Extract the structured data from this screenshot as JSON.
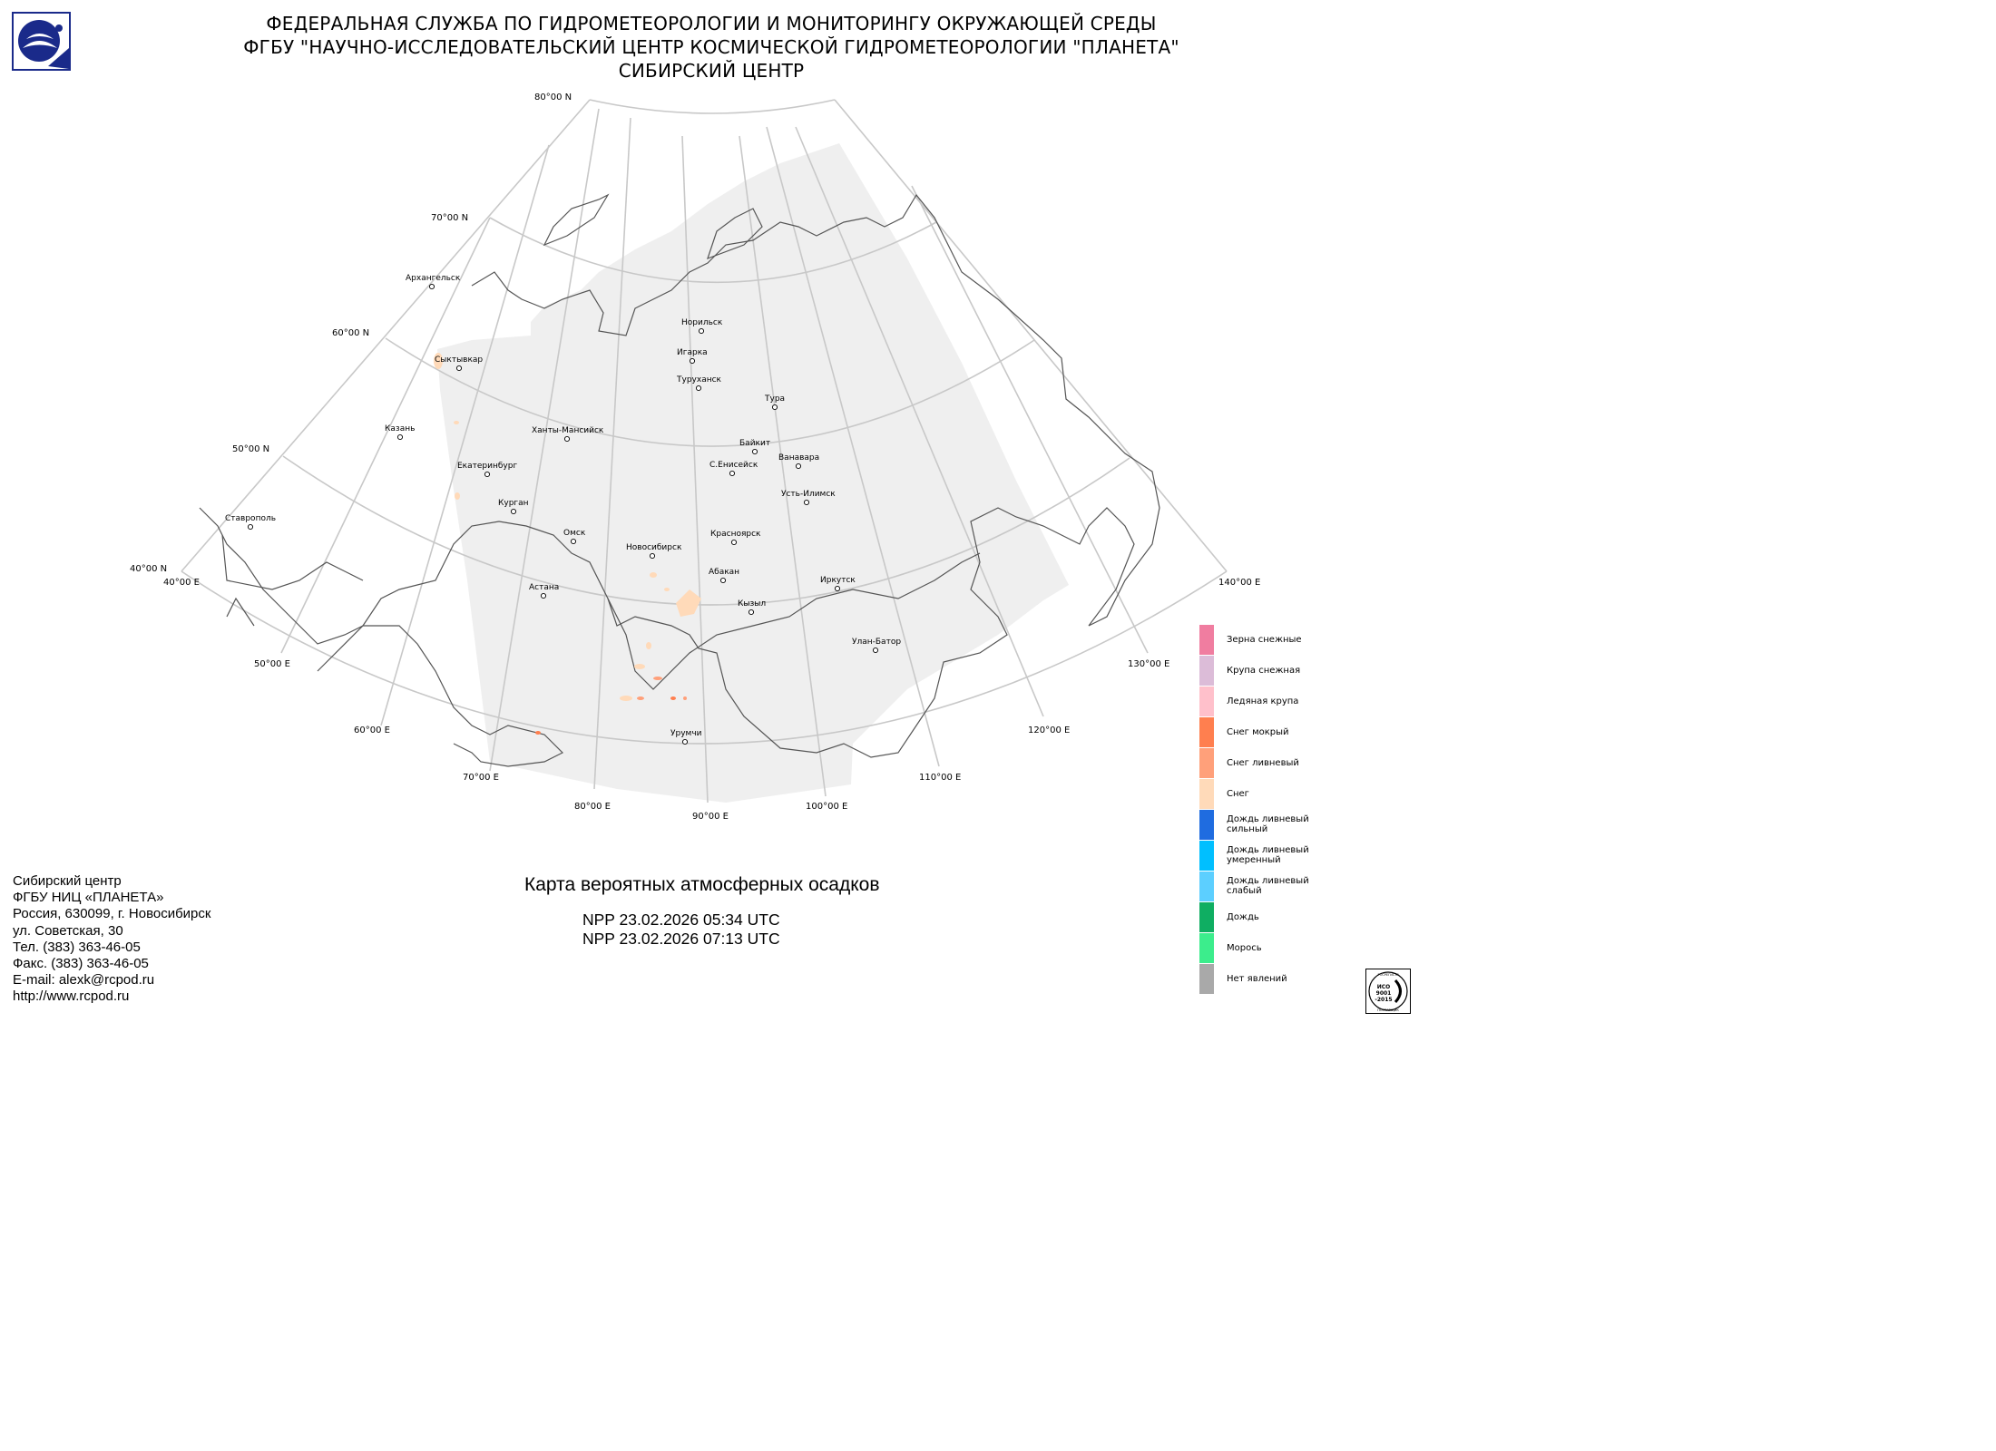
{
  "header": {
    "line1": "ФЕДЕРАЛЬНАЯ СЛУЖБА ПО ГИДРОМЕТЕОРОЛОГИИ И МОНИТОРИНГУ ОКРУЖАЮЩЕЙ СРЕДЫ",
    "line2": "ФГБУ \"НАУЧНО-ИССЛЕДОВАТЕЛЬСКИЙ ЦЕНТР КОСМИЧЕСКОЙ ГИДРОМЕТЕОРОЛОГИИ \"ПЛАНЕТА\"",
    "line3": "СИБИРСКИЙ ЦЕНТР",
    "logo_icon": "roshydromet-logo-icon"
  },
  "map": {
    "latitude_labels": [
      "80°00 N",
      "70°00 N",
      "60°00 N",
      "50°00 N",
      "40°00 N"
    ],
    "longitude_labels": [
      "40°00 E",
      "50°00 E",
      "60°00 E",
      "70°00 E",
      "80°00 E",
      "90°00 E",
      "100°00 E",
      "110°00 E",
      "120°00 E",
      "130°00 E",
      "140°00 E"
    ],
    "cities": [
      "Архангельск",
      "Норильск",
      "Игарка",
      "Туруханск",
      "Тура",
      "Сыктывкар",
      "Казань",
      "Ханты-Мансийск",
      "Байкит",
      "Ванавара",
      "С.Енисейск",
      "Екатеринбург",
      "Курган",
      "Усть-Илимск",
      "Ставрополь",
      "Омск",
      "Новосибирск",
      "Красноярск",
      "Абакан",
      "Иркутск",
      "Астана",
      "Кызыл",
      "Улан-Батор",
      "Урумчи"
    ],
    "swath_color": "#efefef",
    "grid_color": "#c8c8c8",
    "border_color": "#555555"
  },
  "legend": [
    {
      "label": "Зерна снежные",
      "color": "#f07da0"
    },
    {
      "label": "Крупа снежная",
      "color": "#dcbcd8"
    },
    {
      "label": "Ледяная крупа",
      "color": "#ffc0cb"
    },
    {
      "label": "Снег мокрый",
      "color": "#ff7f4f"
    },
    {
      "label": "Снег ливневый",
      "color": "#ffa07a"
    },
    {
      "label": "Снег",
      "color": "#ffdab9"
    },
    {
      "label": "Дождь ливневый сильный",
      "color": "#1f6ce0"
    },
    {
      "label": "Дождь ливневый умеренный",
      "color": "#00bfff"
    },
    {
      "label": "Дождь ливневый слабый",
      "color": "#5ccfff"
    },
    {
      "label": "Дождь",
      "color": "#0fae62"
    },
    {
      "label": "Морось",
      "color": "#3ced8c"
    },
    {
      "label": "Нет явлений",
      "color": "#a9a9a9"
    }
  ],
  "product": {
    "title": "Карта вероятных атмосферных осадков",
    "pass1": "NPP 23.02.2026  05:34 UTC",
    "pass2": "NPP 23.02.2026  07:13 UTC"
  },
  "footer": {
    "line1": "Сибирский центр",
    "line2": "ФГБУ НИЦ «ПЛАНЕТА»",
    "line3": "Россия, 630099, г. Новосибирск",
    "line4": "ул. Советская, 30",
    "line5": "Тел. (383) 363-46-05",
    "line6": "Факс. (383) 363-46-05",
    "line7": "E-mail: alexk@rcpod.ru",
    "line8": "http://www.rcpod.ru"
  },
  "iso_badge": {
    "ring_text": "РОСРЕГИСТР",
    "line1": "ИСО",
    "line2": "9001",
    "line3": "-2015",
    "bottom_text": "ПОСТАВЩИК"
  }
}
